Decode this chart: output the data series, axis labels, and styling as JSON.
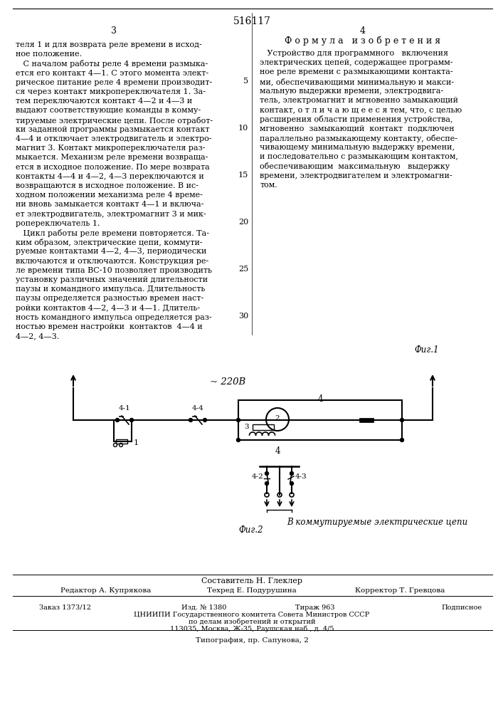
{
  "patent_number": "516117",
  "page_col_left": "3",
  "page_col_right": "4",
  "section_title": "Ф о р м у л а   и з о б р е т е н и я",
  "left_text": [
    "теля 1 и для возврата реле времени в исход-",
    "ное положение.",
    "   С началом работы реле 4 времени размыка-",
    "ется его контакт 4—1. С этого момента элект-",
    "рическое питание реле 4 времени производит-",
    "ся через контакт микропереключателя 1. За-",
    "тем переключаются контакт 4—2 и 4—3 и",
    "выдают соответствующие команды в комму-",
    "тируемые электрические цепи. После отработ-",
    "ки заданной программы размыкается контакт",
    "4—4 и отключает электродвигатель и электро-",
    "магнит 3. Контакт микропереключателя раз-",
    "мыкается. Механизм реле времени возвраща-",
    "ется в исходное положение. По мере возврата",
    "контакты 4—4 и 4—2, 4—3 переключаются и",
    "возвращаются в исходное положение. В ис-",
    "ходном положении механизма реле 4 време-",
    "ни вновь замыкается контакт 4—1 и включа-",
    "ет электродвигатель, электромагнит 3 и мик-",
    "ропереключатель 1.",
    "   Цикл работы реле времени повторяется. Та-",
    "ким образом, электрические цепи, коммути-",
    "руемые контактами 4—2, 4—3, периодически",
    "включаются и отключаются. Конструкция ре-",
    "ле времени типа ВС-10 позволяет производить",
    "установку различных значений длительности",
    "паузы и командного импульса. Длительность",
    "паузы определяется разностью времен наст-",
    "ройки контактов 4—2, 4—3 и 4—1. Длитель-",
    "ность командного импульса определяется раз-",
    "ностью времен настройки  контактов  4—4 и",
    "4—2, 4—3."
  ],
  "right_text": [
    "   Устройство для программного   включения",
    "электрических цепей, содержащее программ-",
    "ное реле времени с размыкающими контакта-",
    "ми, обеспечивающими минимальную и макси-",
    "мальную выдержки времени, электродвига-",
    "тель, электромагнит и мгновенно замыкающий",
    "контакт, о т л и ч а ю щ е е с я тем, что, с целью",
    "расширения области применения устройства,",
    "мгновенно  замыкающий  контакт  подключен",
    "параллельно размыкающему контакту, обеспе-",
    "чивающему минимальную выдержку времени,",
    "и последовательно с размыкающим контактом,",
    "обеспечивающим  максимальную   выдержку",
    "времени, электродвигателем и электромагни-",
    "том."
  ],
  "line_numbers_left": [
    [
      4,
      "5"
    ],
    [
      9,
      "10"
    ],
    [
      14,
      "15"
    ],
    [
      19,
      "20"
    ],
    [
      24,
      "25"
    ],
    [
      29,
      "30"
    ]
  ],
  "fig1_label": "Фиг.1",
  "fig2_label": "Фиг.2",
  "fig2_caption": "В коммутируемые электрические цепи",
  "voltage_label": "~ 220В",
  "footer_composer": "Составитель Н. Глеклер",
  "footer_editor": "Редактор А. Купрякова",
  "footer_tech": "Техред Е. Подурушина",
  "footer_corrector": "Корректор Т. Гревцова",
  "footer_order": "Заказ 1373/12",
  "footer_pub": "Изд. № 1380",
  "footer_circ": "Тираж 963",
  "footer_sub": "Подписное",
  "footer_org": "ЦНИИПИ Государственного комитета Совета Министров СССР",
  "footer_org2": "по делам изобретений и открытий",
  "footer_addr": "113035, Москва, Ж-35, Раушская наб., д. 4/5",
  "footer_print": "Типография, пр. Сапунова, 2",
  "bg_color": "#ffffff",
  "text_color": "#000000"
}
